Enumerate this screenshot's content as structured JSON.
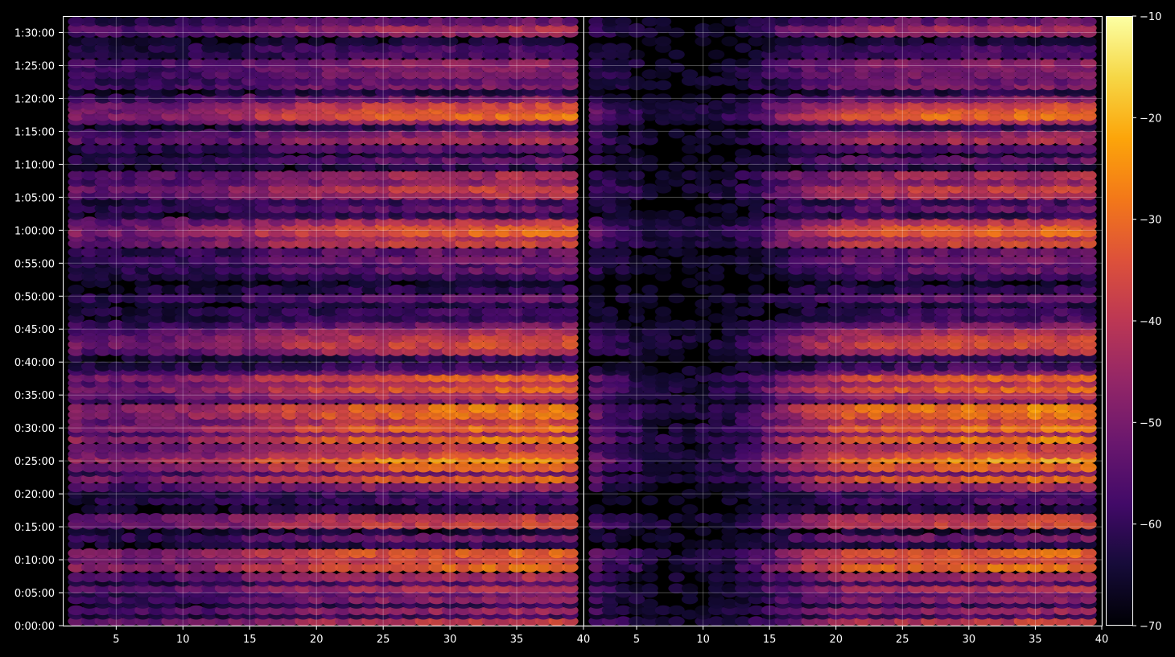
{
  "chart_data": {
    "type": "heatmap",
    "panels": [
      {
        "name": "left",
        "xlim": [
          1,
          40
        ],
        "xticks": [
          5,
          10,
          15,
          20,
          25,
          30,
          35,
          40
        ],
        "column_profile": [
          0.55,
          0.5,
          0.5,
          0.5,
          0.48,
          0.5,
          0.52,
          0.55,
          0.55,
          0.58,
          0.6,
          0.62,
          0.65,
          0.68,
          0.72,
          0.75,
          0.78,
          0.8,
          0.82,
          0.85,
          0.85,
          0.88,
          0.9,
          0.9,
          0.92,
          0.92,
          0.93,
          0.95,
          0.95,
          0.95,
          0.97,
          0.97,
          0.98,
          1.0,
          1.0,
          1.0,
          1.0,
          1.0
        ]
      },
      {
        "name": "right",
        "xlim": [
          1,
          40
        ],
        "xticks": [
          5,
          10,
          15,
          20,
          25,
          30,
          35,
          40
        ],
        "column_profile": [
          0.45,
          0.35,
          0.28,
          0.22,
          0.18,
          0.16,
          0.15,
          0.15,
          0.16,
          0.18,
          0.22,
          0.28,
          0.35,
          0.45,
          0.55,
          0.62,
          0.7,
          0.75,
          0.8,
          0.85,
          0.88,
          0.9,
          0.9,
          0.92,
          0.92,
          0.93,
          0.95,
          0.95,
          0.95,
          0.97,
          0.97,
          0.98,
          1.0,
          1.0,
          1.0,
          1.0,
          1.0,
          1.0
        ]
      }
    ],
    "yaxis": {
      "unit": "time",
      "ylim_seconds": [
        0,
        5550
      ],
      "ticks": [
        "0:00:00",
        "0:05:00",
        "0:10:00",
        "0:15:00",
        "0:20:00",
        "0:25:00",
        "0:30:00",
        "0:35:00",
        "0:40:00",
        "0:45:00",
        "0:50:00",
        "0:55:00",
        "1:00:00",
        "1:05:00",
        "1:10:00",
        "1:15:00",
        "1:20:00",
        "1:25:00",
        "1:30:00"
      ]
    },
    "bands": [
      {
        "t": 40,
        "v": -38
      },
      {
        "t": 100,
        "v": -58
      },
      {
        "t": 140,
        "v": -44
      },
      {
        "t": 200,
        "v": -60
      },
      {
        "t": 240,
        "v": -46
      },
      {
        "t": 300,
        "v": -52
      },
      {
        "t": 340,
        "v": -40
      },
      {
        "t": 400,
        "v": -56
      },
      {
        "t": 440,
        "v": -42
      },
      {
        "t": 530,
        "v": -28
      },
      {
        "t": 600,
        "v": -34
      },
      {
        "t": 660,
        "v": -30
      },
      {
        "t": 740,
        "v": -60
      },
      {
        "t": 800,
        "v": -50
      },
      {
        "t": 860,
        "v": -64
      },
      {
        "t": 920,
        "v": -36
      },
      {
        "t": 980,
        "v": -38
      },
      {
        "t": 1060,
        "v": -62
      },
      {
        "t": 1140,
        "v": -56
      },
      {
        "t": 1200,
        "v": -58
      },
      {
        "t": 1260,
        "v": -44
      },
      {
        "t": 1340,
        "v": -30
      },
      {
        "t": 1400,
        "v": -50
      },
      {
        "t": 1440,
        "v": -30
      },
      {
        "t": 1520,
        "v": -22
      },
      {
        "t": 1560,
        "v": -34
      },
      {
        "t": 1620,
        "v": -38
      },
      {
        "t": 1700,
        "v": -26
      },
      {
        "t": 1760,
        "v": -44
      },
      {
        "t": 1800,
        "v": -28
      },
      {
        "t": 1860,
        "v": -36
      },
      {
        "t": 1920,
        "v": -28
      },
      {
        "t": 1980,
        "v": -26
      },
      {
        "t": 2060,
        "v": -46
      },
      {
        "t": 2100,
        "v": -40
      },
      {
        "t": 2160,
        "v": -30
      },
      {
        "t": 2210,
        "v": -40
      },
      {
        "t": 2260,
        "v": -30
      },
      {
        "t": 2320,
        "v": -50
      },
      {
        "t": 2360,
        "v": -58
      },
      {
        "t": 2440,
        "v": -60
      },
      {
        "t": 2500,
        "v": -40
      },
      {
        "t": 2560,
        "v": -34
      },
      {
        "t": 2620,
        "v": -36
      },
      {
        "t": 2680,
        "v": -42
      },
      {
        "t": 2740,
        "v": -50
      },
      {
        "t": 2800,
        "v": -58
      },
      {
        "t": 2860,
        "v": -58
      },
      {
        "t": 2930,
        "v": -62
      },
      {
        "t": 2980,
        "v": -52
      },
      {
        "t": 3060,
        "v": -60
      },
      {
        "t": 3120,
        "v": -66
      },
      {
        "t": 3180,
        "v": -58
      },
      {
        "t": 3240,
        "v": -52
      },
      {
        "t": 3300,
        "v": -56
      },
      {
        "t": 3330,
        "v": -50
      },
      {
        "t": 3400,
        "v": -52
      },
      {
        "t": 3480,
        "v": -36
      },
      {
        "t": 3540,
        "v": -40
      },
      {
        "t": 3580,
        "v": -30
      },
      {
        "t": 3640,
        "v": -32
      },
      {
        "t": 3680,
        "v": -40
      },
      {
        "t": 3740,
        "v": -60
      },
      {
        "t": 3800,
        "v": -52
      },
      {
        "t": 3860,
        "v": -58
      },
      {
        "t": 3920,
        "v": -40
      },
      {
        "t": 3980,
        "v": -36
      },
      {
        "t": 4040,
        "v": -46
      },
      {
        "t": 4100,
        "v": -42
      },
      {
        "t": 4180,
        "v": -62
      },
      {
        "t": 4240,
        "v": -52
      },
      {
        "t": 4300,
        "v": -64
      },
      {
        "t": 4340,
        "v": -54
      },
      {
        "t": 4420,
        "v": -42
      },
      {
        "t": 4480,
        "v": -46
      },
      {
        "t": 4540,
        "v": -60
      },
      {
        "t": 4600,
        "v": -42
      },
      {
        "t": 4640,
        "v": -28
      },
      {
        "t": 4700,
        "v": -32
      },
      {
        "t": 4740,
        "v": -36
      },
      {
        "t": 4800,
        "v": -48
      },
      {
        "t": 4860,
        "v": -62
      },
      {
        "t": 4920,
        "v": -48
      },
      {
        "t": 4960,
        "v": -52
      },
      {
        "t": 5020,
        "v": -48
      },
      {
        "t": 5080,
        "v": -48
      },
      {
        "t": 5120,
        "v": -46
      },
      {
        "t": 5200,
        "v": -56
      },
      {
        "t": 5260,
        "v": -56
      },
      {
        "t": 5320,
        "v": -64
      },
      {
        "t": 5400,
        "v": -46
      },
      {
        "t": 5440,
        "v": -42
      },
      {
        "t": 5500,
        "v": -52
      }
    ],
    "colorbar": {
      "colormap": "inferno",
      "range": [
        -70,
        -10
      ],
      "ticks": [
        "−70",
        "−60",
        "−50",
        "−40",
        "−30",
        "−20",
        "−10"
      ]
    },
    "grid": true,
    "background": "#000000",
    "frame_color": "#ffffff",
    "text_color": "#ffffff"
  }
}
